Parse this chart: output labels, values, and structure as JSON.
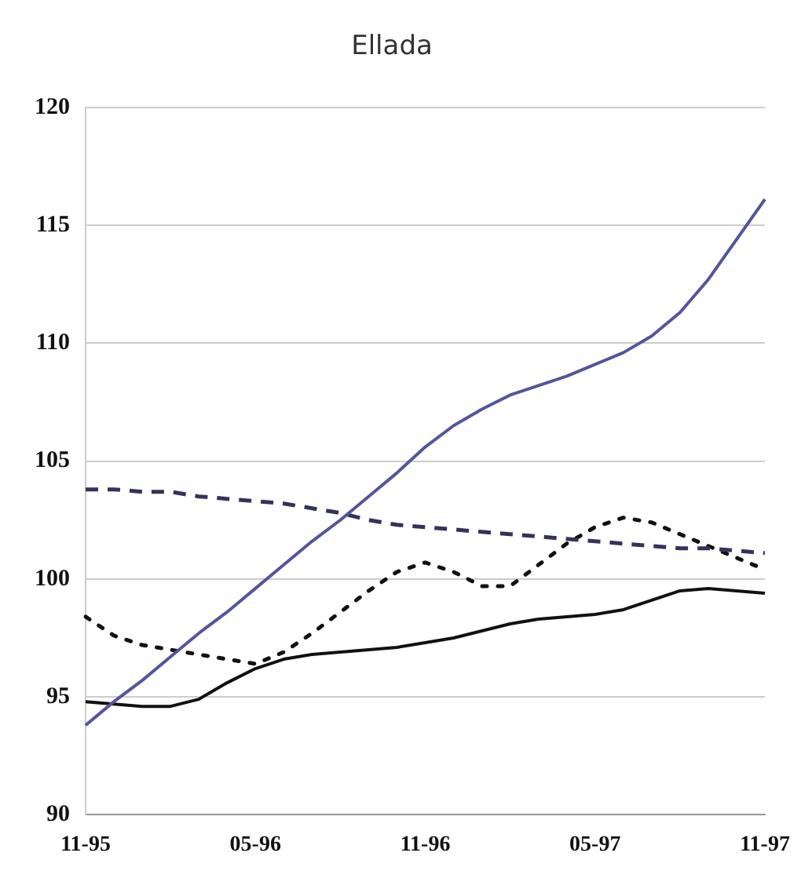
{
  "chart_data": {
    "type": "line",
    "title": "Ellada",
    "categories": [
      "11-95",
      null,
      null,
      null,
      null,
      null,
      "05-96",
      null,
      null,
      null,
      null,
      null,
      "11-96",
      null,
      null,
      null,
      null,
      null,
      "05-97",
      null,
      null,
      null,
      null,
      null,
      "11-97"
    ],
    "series": [
      {
        "color": "#55559a",
        "line_style": "solid",
        "values": [
          93.8,
          94.8,
          95.7,
          96.7,
          97.7,
          98.6,
          99.6,
          100.6,
          101.6,
          102.5,
          103.5,
          104.5,
          105.6,
          106.5,
          107.2,
          107.8,
          108.2,
          108.6,
          109.1,
          109.6,
          110.3,
          111.3,
          112.7,
          114.4,
          116.1
        ]
      },
      {
        "color": "#111111",
        "line_style": "solid",
        "values": [
          94.8,
          94.7,
          94.6,
          94.6,
          94.9,
          95.6,
          96.2,
          96.6,
          96.8,
          96.9,
          97.0,
          97.1,
          97.3,
          97.5,
          97.8,
          98.1,
          98.3,
          98.4,
          98.5,
          98.7,
          99.1,
          99.5,
          99.6,
          99.5,
          99.4
        ]
      },
      {
        "color": "#33335a",
        "line_style": "dashed",
        "values": [
          103.8,
          103.8,
          103.7,
          103.7,
          103.5,
          103.4,
          103.3,
          103.2,
          103.0,
          102.8,
          102.5,
          102.3,
          102.2,
          102.1,
          102.0,
          101.9,
          101.8,
          101.7,
          101.6,
          101.5,
          101.4,
          101.3,
          101.3,
          101.2,
          101.1
        ]
      },
      {
        "color": "#111111",
        "line_style": "dotted",
        "values": [
          98.4,
          97.6,
          97.2,
          97.0,
          96.8,
          96.6,
          96.4,
          96.9,
          97.7,
          98.6,
          99.5,
          100.3,
          100.7,
          100.3,
          99.7,
          99.7,
          100.6,
          101.5,
          102.2,
          102.6,
          102.4,
          101.9,
          101.4,
          100.9,
          100.4
        ]
      }
    ],
    "ylim": [
      90,
      120
    ],
    "yticks": [
      90,
      95,
      100,
      105,
      110,
      115,
      120
    ],
    "grid": "y",
    "legend": false,
    "marker": "none"
  }
}
